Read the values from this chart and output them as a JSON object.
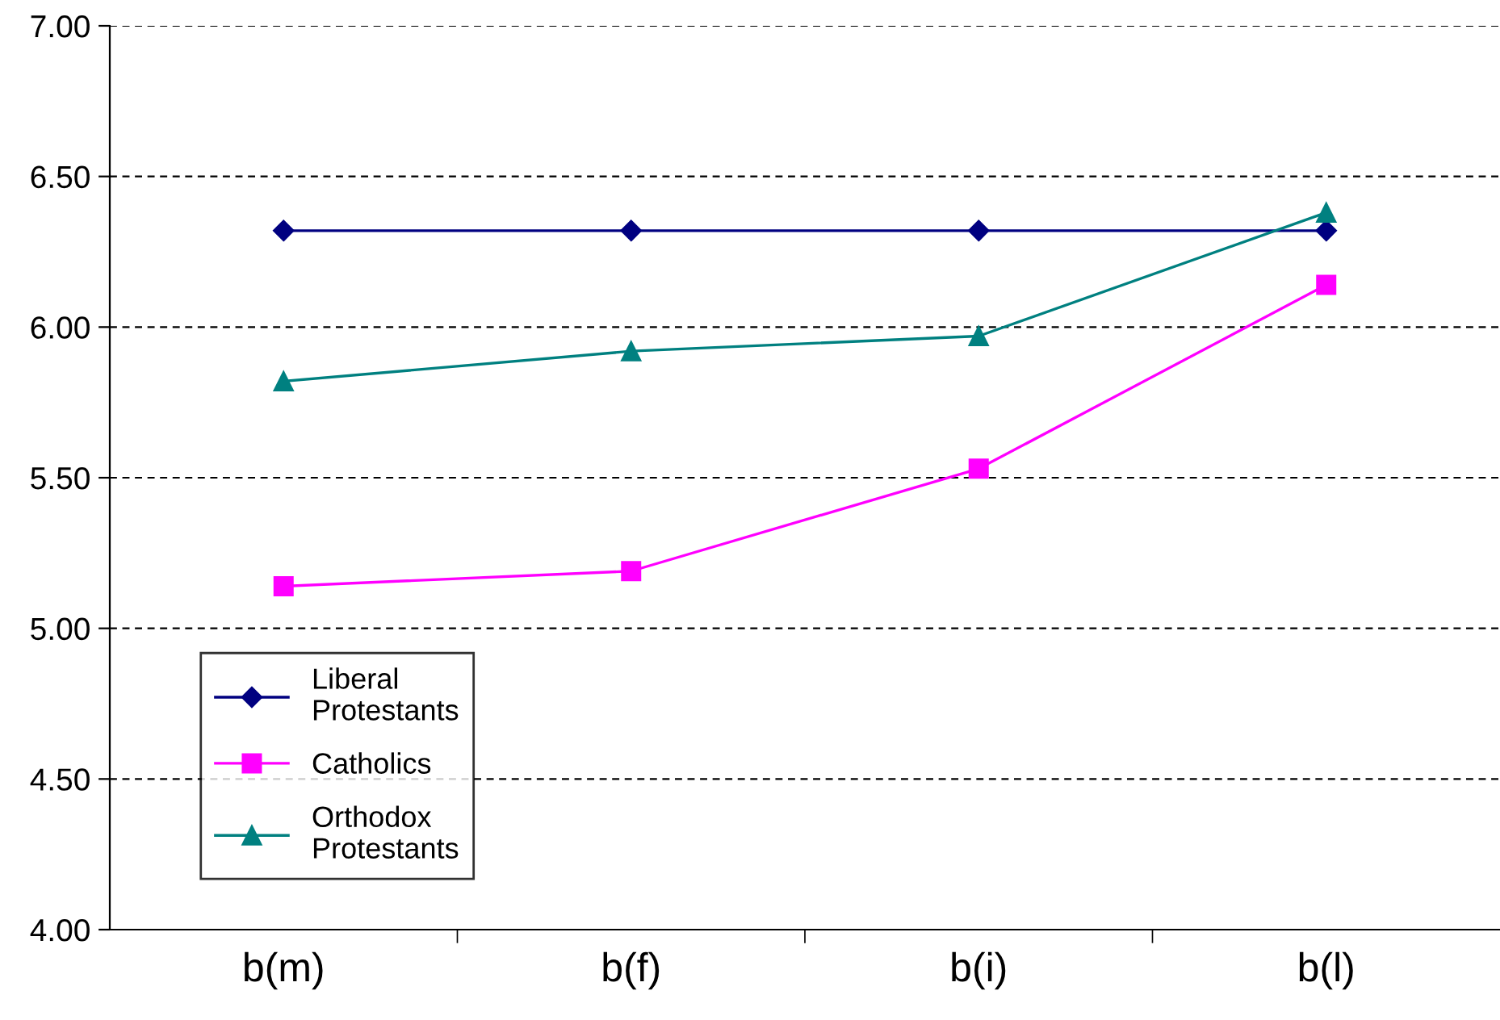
{
  "chart_data": {
    "type": "line",
    "categories": [
      "b(m)",
      "b(f)",
      "b(i)",
      "b(l)"
    ],
    "series": [
      {
        "name": "Liberal\nProtestants",
        "color": "#000080",
        "marker": "diamond",
        "values": [
          6.32,
          6.32,
          6.32,
          6.32
        ]
      },
      {
        "name": "Catholics",
        "color": "#ff00ff",
        "marker": "square",
        "values": [
          5.14,
          5.19,
          5.53,
          6.14
        ]
      },
      {
        "name": "Orthodox\nProtestants",
        "color": "#008080",
        "marker": "triangle",
        "values": [
          5.82,
          5.92,
          5.97,
          6.38
        ]
      }
    ],
    "ylim": [
      4.0,
      7.0
    ],
    "yticks": [
      {
        "value": 4.0,
        "label": "4.00"
      },
      {
        "value": 4.5,
        "label": "4.50"
      },
      {
        "value": 5.0,
        "label": "5.00"
      },
      {
        "value": 5.5,
        "label": "5.50"
      },
      {
        "value": 6.0,
        "label": "6.00"
      },
      {
        "value": 6.5,
        "label": "6.50"
      },
      {
        "value": 7.0,
        "label": "7.00"
      }
    ],
    "grid": "y",
    "legend": "bottom left",
    "line_style": "solid"
  }
}
